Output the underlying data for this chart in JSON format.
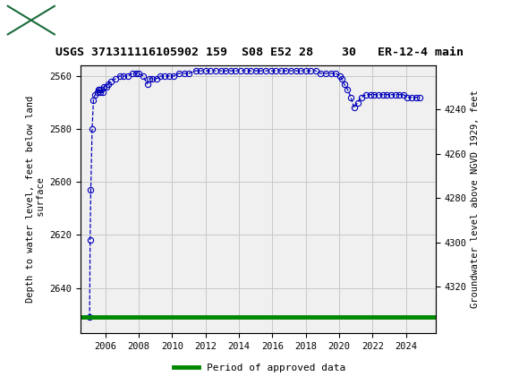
{
  "title": "USGS 371311116105902 159  S08 E52 28    30   ER-12-4 main",
  "ylabel_left": "Depth to water level, feet below land\n surface",
  "ylabel_right": "Groundwater level above NGVD 1929, feet",
  "ylim_left": [
    2556,
    2657
  ],
  "ylim_right": [
    4220,
    4341
  ],
  "yticks_left": [
    2560,
    2580,
    2600,
    2620,
    2640
  ],
  "yticks_right": [
    4320,
    4300,
    4280,
    4260,
    4240
  ],
  "xlim": [
    2004.5,
    2025.8
  ],
  "xticks": [
    2006,
    2008,
    2010,
    2012,
    2014,
    2016,
    2018,
    2020,
    2022,
    2024
  ],
  "background_color": "#ffffff",
  "plot_bg_color": "#f0f0f0",
  "grid_color": "#c8c8c8",
  "line_color": "#0000bb",
  "marker_color": "#0000bb",
  "green_line_color": "#008800",
  "header_color": "#1a6b3a",
  "data_x": [
    2005.05,
    2005.08,
    2005.12,
    2005.2,
    2005.28,
    2005.38,
    2005.5,
    2005.6,
    2005.65,
    2005.7,
    2005.75,
    2005.82,
    2005.9,
    2006.05,
    2006.15,
    2006.35,
    2006.6,
    2006.85,
    2007.1,
    2007.35,
    2007.6,
    2007.85,
    2008.0,
    2008.25,
    2008.5,
    2008.65,
    2008.8,
    2009.05,
    2009.3,
    2009.55,
    2009.8,
    2010.1,
    2010.4,
    2010.7,
    2011.0,
    2011.4,
    2011.7,
    2012.0,
    2012.3,
    2012.6,
    2012.9,
    2013.2,
    2013.5,
    2013.8,
    2014.1,
    2014.4,
    2014.7,
    2015.0,
    2015.3,
    2015.6,
    2015.9,
    2016.2,
    2016.5,
    2016.8,
    2017.1,
    2017.4,
    2017.7,
    2018.0,
    2018.3,
    2018.6,
    2018.9,
    2019.2,
    2019.5,
    2019.8,
    2020.05,
    2020.15,
    2020.3,
    2020.5,
    2020.7,
    2020.9,
    2021.1,
    2021.35,
    2021.6,
    2021.85,
    2022.1,
    2022.35,
    2022.6,
    2022.85,
    2023.1,
    2023.35,
    2023.6,
    2023.85,
    2024.1,
    2024.35,
    2024.6,
    2024.85
  ],
  "data_y": [
    2651,
    2622,
    2603,
    2580,
    2569,
    2567,
    2566,
    2565,
    2565,
    2566,
    2565,
    2566,
    2564,
    2564,
    2563,
    2562,
    2561,
    2560,
    2560,
    2560,
    2559,
    2559,
    2559,
    2560,
    2563,
    2561,
    2561,
    2561,
    2560,
    2560,
    2560,
    2560,
    2559,
    2559,
    2559,
    2558,
    2558,
    2558,
    2558,
    2558,
    2558,
    2558,
    2558,
    2558,
    2558,
    2558,
    2558,
    2558,
    2558,
    2558,
    2558,
    2558,
    2558,
    2558,
    2558,
    2558,
    2558,
    2558,
    2558,
    2558,
    2559,
    2559,
    2559,
    2559,
    2560,
    2561,
    2563,
    2565,
    2568,
    2572,
    2570,
    2568,
    2567,
    2567,
    2567,
    2567,
    2567,
    2567,
    2567,
    2567,
    2567,
    2567,
    2568,
    2568,
    2568,
    2568
  ],
  "green_y": 2651,
  "legend_label": "Period of approved data",
  "font_family": "DejaVu Sans Mono",
  "title_fontsize": 9.5,
  "tick_fontsize": 7.5,
  "label_fontsize": 7.5
}
